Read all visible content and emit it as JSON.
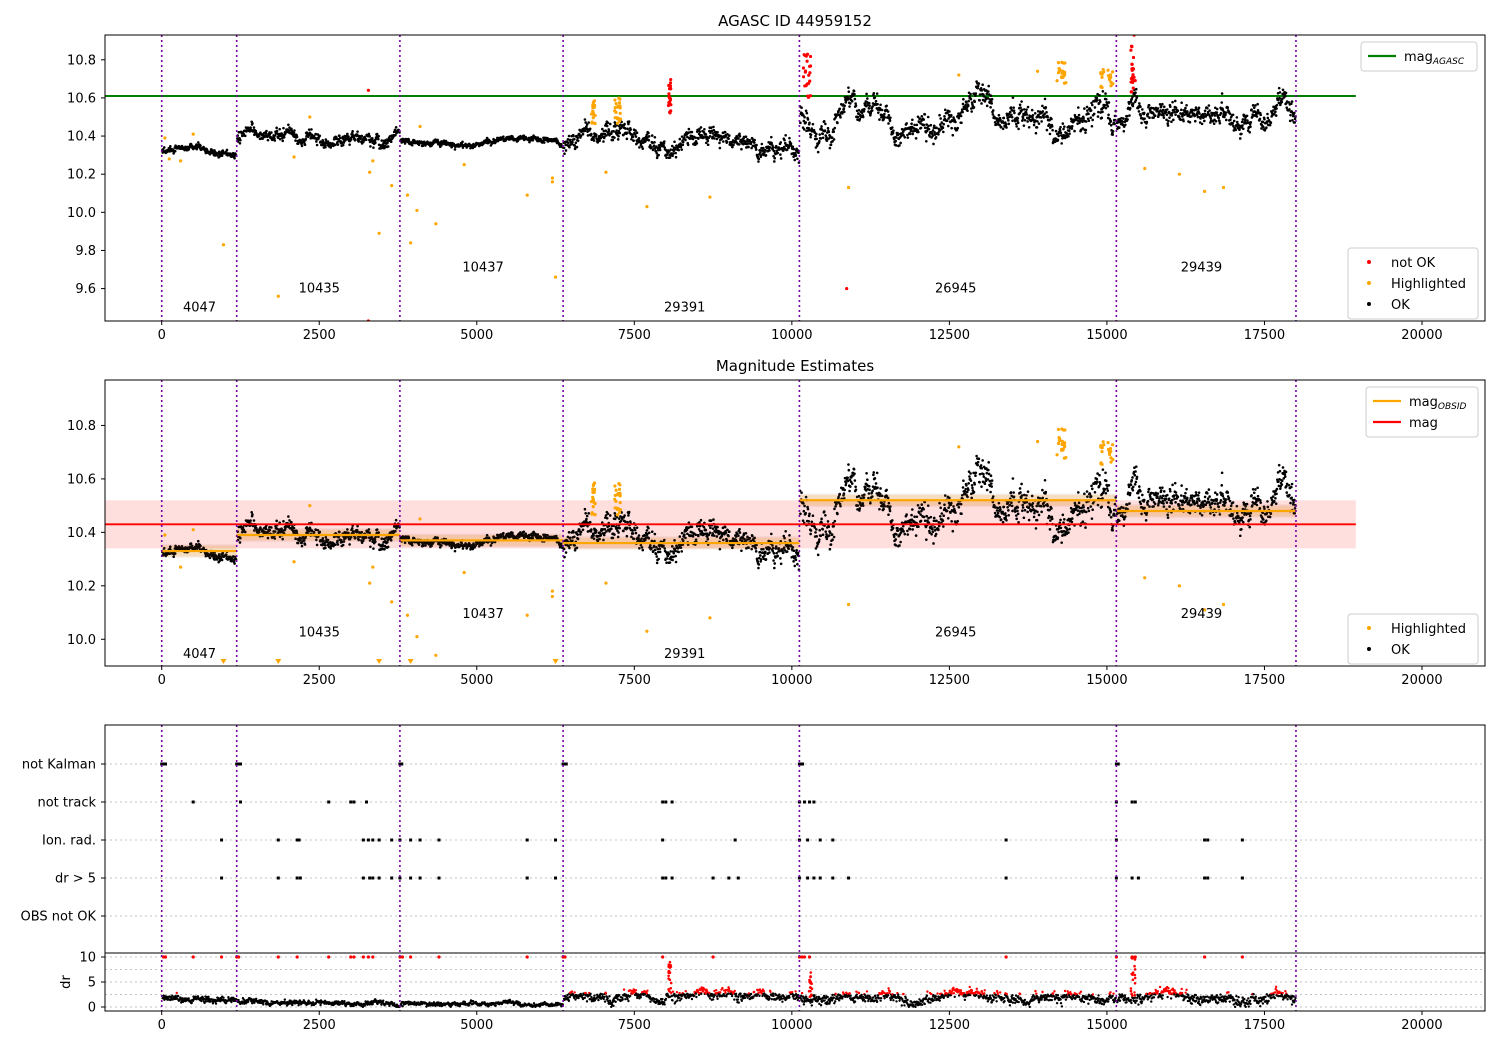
{
  "colors": {
    "ok": "#000000",
    "highlighted": "#ffa500",
    "not_ok": "#ff0000",
    "mag_agasc": "#008000",
    "mag_obsid": "#ffa500",
    "mag": "#ff0000",
    "segment_line": "#7a00a8"
  },
  "chart_data": [
    {
      "type": "scatter",
      "title": "AGASC ID 44959152",
      "xlim": [
        -900,
        21000
      ],
      "ylim": [
        9.43,
        10.93
      ],
      "x_ticks": [
        0,
        2500,
        5000,
        7500,
        10000,
        12500,
        15000,
        17500,
        20000
      ],
      "x_tick_labels": [
        "0",
        "2500",
        "5000",
        "7500",
        "10000",
        "12500",
        "15000",
        "17500",
        "20000"
      ],
      "y_ticks": [
        9.6,
        9.8,
        10.0,
        10.2,
        10.4,
        10.6,
        10.8
      ],
      "y_tick_labels": [
        "9.6",
        "9.8",
        "10.0",
        "10.2",
        "10.4",
        "10.6",
        "10.8"
      ],
      "segment_boundaries": [
        0,
        1190,
        3780,
        6370,
        10120,
        15150,
        18000
      ],
      "segment_labels": [
        {
          "text": "4047",
          "x": 600,
          "y": 9.48
        },
        {
          "text": "10435",
          "x": 2500,
          "y": 9.58
        },
        {
          "text": "10437",
          "x": 5100,
          "y": 9.69
        },
        {
          "text": "29391",
          "x": 8300,
          "y": 9.48
        },
        {
          "text": "26945",
          "x": 12600,
          "y": 9.58
        },
        {
          "text": "29439",
          "x": 16500,
          "y": 9.69
        }
      ],
      "mag_agasc": 10.61,
      "mag_agasc_xrange": [
        -900,
        18950
      ],
      "segments": [
        {
          "x0": 0,
          "x1": 1190,
          "mean": 10.33,
          "noise": 0.02
        },
        {
          "x0": 1190,
          "x1": 3780,
          "mean": 10.4,
          "noise": 0.035
        },
        {
          "x0": 3780,
          "x1": 6370,
          "mean": 10.37,
          "noise": 0.015
        },
        {
          "x0": 6370,
          "x1": 10120,
          "mean": 10.36,
          "noise": 0.05
        },
        {
          "x0": 10120,
          "x1": 15150,
          "mean": 10.52,
          "noise": 0.07
        },
        {
          "x0": 15150,
          "x1": 18000,
          "mean": 10.48,
          "noise": 0.06
        }
      ],
      "highlighted_points": [
        [
          50,
          10.39
        ],
        [
          120,
          10.28
        ],
        [
          300,
          10.27
        ],
        [
          500,
          10.41
        ],
        [
          980,
          9.83
        ],
        [
          1850,
          9.56
        ],
        [
          2100,
          10.29
        ],
        [
          2350,
          10.5
        ],
        [
          3300,
          10.21
        ],
        [
          3350,
          10.27
        ],
        [
          3450,
          9.89
        ],
        [
          3650,
          10.14
        ],
        [
          3900,
          10.09
        ],
        [
          3950,
          9.84
        ],
        [
          4050,
          10.01
        ],
        [
          4100,
          10.45
        ],
        [
          4350,
          9.94
        ],
        [
          4800,
          10.25
        ],
        [
          5800,
          10.09
        ],
        [
          6200,
          10.16
        ],
        [
          6200,
          10.18
        ],
        [
          6250,
          9.66
        ],
        [
          7050,
          10.21
        ],
        [
          7700,
          10.03
        ],
        [
          8700,
          10.08
        ],
        [
          10900,
          10.13
        ],
        [
          12650,
          10.72
        ],
        [
          13900,
          10.74
        ],
        [
          15600,
          10.23
        ],
        [
          16150,
          10.2
        ],
        [
          16550,
          10.11
        ],
        [
          16850,
          10.13
        ]
      ],
      "highlighted_bursts": [
        {
          "x0": 6820,
          "x1": 6880,
          "ymin": 10.46,
          "ymax": 10.59
        },
        {
          "x0": 7180,
          "x1": 7280,
          "ymin": 10.45,
          "ymax": 10.63
        },
        {
          "x0": 14200,
          "x1": 14350,
          "ymin": 10.66,
          "ymax": 10.79
        },
        {
          "x0": 14900,
          "x1": 15100,
          "ymin": 10.65,
          "ymax": 10.75
        }
      ],
      "not_ok_points": [
        [
          3280,
          10.64
        ],
        [
          3280,
          9.43
        ],
        [
          10870,
          9.6
        ]
      ],
      "not_ok_bursts": [
        {
          "x0": 8040,
          "x1": 8080,
          "ymin": 10.52,
          "ymax": 10.7
        },
        {
          "x0": 10180,
          "x1": 10300,
          "ymin": 10.6,
          "ymax": 10.83
        },
        {
          "x0": 15380,
          "x1": 15450,
          "ymin": 10.63,
          "ymax": 10.93
        }
      ],
      "legend_top": [
        {
          "label": "mag",
          "sub": "AGASC",
          "color": "#008000",
          "kind": "line"
        }
      ],
      "legend_bottom": [
        {
          "label": "not OK",
          "color": "#ff0000",
          "kind": "dot"
        },
        {
          "label": "Highlighted",
          "color": "#ffa500",
          "kind": "dot"
        },
        {
          "label": "OK",
          "color": "#000000",
          "kind": "dot"
        }
      ]
    },
    {
      "type": "scatter",
      "title": "Magnitude Estimates",
      "xlim": [
        -900,
        21000
      ],
      "ylim": [
        9.9,
        10.97
      ],
      "x_ticks": [
        0,
        2500,
        5000,
        7500,
        10000,
        12500,
        15000,
        17500,
        20000
      ],
      "x_tick_labels": [
        "0",
        "2500",
        "5000",
        "7500",
        "10000",
        "12500",
        "15000",
        "17500",
        "20000"
      ],
      "y_ticks": [
        10.0,
        10.2,
        10.4,
        10.6,
        10.8
      ],
      "y_tick_labels": [
        "10.0",
        "10.2",
        "10.4",
        "10.6",
        "10.8"
      ],
      "segment_boundaries": [
        0,
        1190,
        3780,
        6370,
        10120,
        15150,
        18000
      ],
      "segment_labels": [
        {
          "text": "4047",
          "x": 600,
          "y": 9.93
        },
        {
          "text": "10435",
          "x": 2500,
          "y": 10.01
        },
        {
          "text": "10437",
          "x": 5100,
          "y": 10.08
        },
        {
          "text": "29391",
          "x": 8300,
          "y": 9.93
        },
        {
          "text": "26945",
          "x": 12600,
          "y": 10.01
        },
        {
          "text": "29439",
          "x": 16500,
          "y": 10.08
        }
      ],
      "mag": 10.43,
      "mag_band": [
        10.34,
        10.52
      ],
      "mag_xrange": [
        -900,
        18950
      ],
      "mag_obsid": [
        {
          "x0": 0,
          "x1": 1190,
          "value": 10.33
        },
        {
          "x0": 1190,
          "x1": 3780,
          "value": 10.39
        },
        {
          "x0": 3780,
          "x1": 6370,
          "value": 10.37
        },
        {
          "x0": 6370,
          "x1": 10120,
          "value": 10.36
        },
        {
          "x0": 10120,
          "x1": 15150,
          "value": 10.52
        },
        {
          "x0": 15150,
          "x1": 18000,
          "value": 10.48
        }
      ],
      "segments": [
        {
          "x0": 0,
          "x1": 1190,
          "mean": 10.33,
          "noise": 0.02
        },
        {
          "x0": 1190,
          "x1": 3780,
          "mean": 10.4,
          "noise": 0.035
        },
        {
          "x0": 3780,
          "x1": 6370,
          "mean": 10.37,
          "noise": 0.015
        },
        {
          "x0": 6370,
          "x1": 10120,
          "mean": 10.36,
          "noise": 0.05
        },
        {
          "x0": 10120,
          "x1": 15150,
          "mean": 10.52,
          "noise": 0.07
        },
        {
          "x0": 15150,
          "x1": 18000,
          "mean": 10.48,
          "noise": 0.06
        }
      ],
      "highlighted_points": [
        [
          50,
          10.39
        ],
        [
          300,
          10.27
        ],
        [
          500,
          10.41
        ],
        [
          2100,
          10.29
        ],
        [
          2350,
          10.5
        ],
        [
          3300,
          10.21
        ],
        [
          3350,
          10.27
        ],
        [
          3650,
          10.14
        ],
        [
          3900,
          10.09
        ],
        [
          4050,
          10.01
        ],
        [
          4100,
          10.45
        ],
        [
          4350,
          9.94
        ],
        [
          4800,
          10.25
        ],
        [
          5800,
          10.09
        ],
        [
          6200,
          10.16
        ],
        [
          6200,
          10.18
        ],
        [
          7050,
          10.21
        ],
        [
          7700,
          10.03
        ],
        [
          8700,
          10.08
        ],
        [
          10900,
          10.13
        ],
        [
          12650,
          10.72
        ],
        [
          13900,
          10.74
        ],
        [
          15600,
          10.23
        ],
        [
          16150,
          10.2
        ],
        [
          16550,
          10.11
        ],
        [
          16850,
          10.13
        ]
      ],
      "highlighted_clipped": [
        980,
        1850,
        3450,
        3950,
        6250
      ],
      "highlighted_bursts": [
        {
          "x0": 6820,
          "x1": 6880,
          "ymin": 10.46,
          "ymax": 10.59
        },
        {
          "x0": 7180,
          "x1": 7280,
          "ymin": 10.45,
          "ymax": 10.61
        },
        {
          "x0": 14200,
          "x1": 14350,
          "ymin": 10.66,
          "ymax": 10.79
        },
        {
          "x0": 14900,
          "x1": 15100,
          "ymin": 10.65,
          "ymax": 10.74
        }
      ],
      "legend_top": [
        {
          "label": "mag",
          "sub": "OBSID",
          "color": "#ffa500",
          "kind": "line"
        },
        {
          "label": "mag",
          "sub": "",
          "color": "#ff0000",
          "kind": "line"
        }
      ],
      "legend_bottom": [
        {
          "label": "Highlighted",
          "color": "#ffa500",
          "kind": "dot"
        },
        {
          "label": "OK",
          "color": "#000000",
          "kind": "dot"
        }
      ]
    },
    {
      "type": "scatter",
      "title": "",
      "xlim": [
        -900,
        21000
      ],
      "flag_rows": [
        "not Kalman",
        "not track",
        "Ion. rad.",
        "dr > 5",
        "OBS not OK"
      ],
      "flag_points": {
        "not Kalman": [
          0,
          30,
          60,
          1190,
          1220,
          1250,
          3780,
          3810,
          6370,
          6400,
          6420,
          10120,
          10150,
          10170,
          15150,
          15180
        ],
        "not track": [
          500,
          1250,
          2650,
          3000,
          3050,
          3250,
          7950,
          8000,
          8100,
          10120,
          10200,
          10280,
          10350,
          15150,
          15400,
          15450
        ],
        "Ion. rad.": [
          950,
          1850,
          2150,
          2180,
          3200,
          3280,
          3350,
          3450,
          3650,
          3780,
          3950,
          4100,
          4400,
          5800,
          6250,
          7950,
          9100,
          10120,
          10250,
          10450,
          10650,
          13400,
          15150,
          16550,
          16600,
          17150
        ],
        "dr > 5": [
          950,
          1850,
          2150,
          2200,
          3200,
          3300,
          3350,
          3450,
          3650,
          3780,
          3950,
          4100,
          4400,
          5800,
          6250,
          7950,
          8000,
          8100,
          8750,
          9000,
          9150,
          10120,
          10250,
          10350,
          10450,
          10650,
          10900,
          13400,
          15150,
          15400,
          15500,
          16550,
          16600,
          17150
        ],
        "OBS not OK": []
      },
      "dr_ylim": [
        -0.8,
        10.8
      ],
      "dr_ticks": [
        0,
        5,
        10
      ],
      "dr_tick_labels": [
        "0",
        "5",
        "10"
      ],
      "dr_ylabel": "dr",
      "x_ticks": [
        0,
        2500,
        5000,
        7500,
        10000,
        12500,
        15000,
        17500,
        20000
      ],
      "x_tick_labels": [
        "0",
        "2500",
        "5000",
        "7500",
        "10000",
        "12500",
        "15000",
        "17500",
        "20000"
      ],
      "segment_boundaries": [
        0,
        1190,
        3780,
        6370,
        10120,
        15150,
        18000
      ],
      "dr_segments": [
        {
          "x0": 0,
          "x1": 1190,
          "mean": 1.8,
          "noise": 0.7
        },
        {
          "x0": 1190,
          "x1": 3780,
          "mean": 0.9,
          "noise": 0.5
        },
        {
          "x0": 3780,
          "x1": 6370,
          "mean": 0.6,
          "noise": 0.4
        },
        {
          "x0": 6370,
          "x1": 10120,
          "mean": 1.8,
          "noise": 1.0
        },
        {
          "x0": 10120,
          "x1": 15150,
          "mean": 1.6,
          "noise": 1.0
        },
        {
          "x0": 15150,
          "x1": 18000,
          "mean": 1.7,
          "noise": 1.0
        }
      ],
      "dr_red_top": [
        30,
        60,
        500,
        950,
        1190,
        1220,
        1850,
        2150,
        2650,
        3000,
        3050,
        3200,
        3280,
        3350,
        3780,
        3820,
        3950,
        4400,
        5800,
        6370,
        6400,
        7950,
        8750,
        10120,
        10160,
        10200,
        10280,
        13400,
        15150,
        15400,
        15450,
        16550,
        17150
      ],
      "dr_red_bursts": [
        {
          "x0": 8040,
          "x1": 8090,
          "ymin": 3,
          "ymax": 9
        },
        {
          "x0": 10270,
          "x1": 10320,
          "ymin": 2,
          "ymax": 7
        },
        {
          "x0": 15380,
          "x1": 15450,
          "ymin": 2,
          "ymax": 10
        }
      ]
    }
  ]
}
